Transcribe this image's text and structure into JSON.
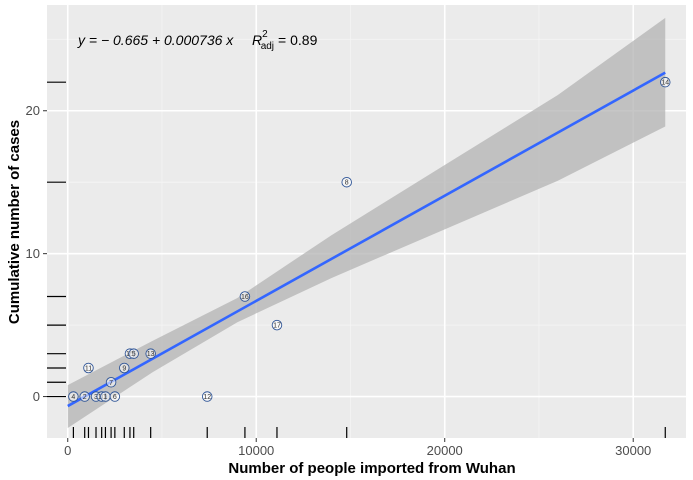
{
  "chart_data": {
    "type": "scatter",
    "title": "",
    "xlabel": "Number of people imported from Wuhan",
    "ylabel": "Cumulative number of cases",
    "xlim": [
      -1100,
      32800
    ],
    "ylim": [
      -2.9,
      27.4
    ],
    "x_ticks": [
      0,
      10000,
      20000,
      30000
    ],
    "x_tick_labels": [
      "0",
      "10000",
      "20000",
      "30000"
    ],
    "y_ticks": [
      0,
      10,
      20
    ],
    "y_tick_labels": [
      "0",
      "10",
      "20"
    ],
    "grid": true,
    "colors": {
      "panel_bg": "#ebebeb",
      "grid_major": "#ffffff",
      "fit_line": "#3366ff",
      "ribbon": "#b3b3b3",
      "point_stroke": "#2f5597",
      "rug": "#000000"
    },
    "fit": {
      "intercept": -0.665,
      "slope": 0.000736,
      "ci_band": [
        {
          "x": 0,
          "lo": -2.2,
          "hi": 0.8
        },
        {
          "x": 4500,
          "lo": 1.7,
          "hi": 3.9
        },
        {
          "x": 9000,
          "lo": 5.2,
          "hi": 6.9
        },
        {
          "x": 14000,
          "lo": 8.3,
          "hi": 11.3
        },
        {
          "x": 20000,
          "lo": 11.7,
          "hi": 16.2
        },
        {
          "x": 26000,
          "lo": 15.1,
          "hi": 21.1
        },
        {
          "x": 31700,
          "lo": 18.9,
          "hi": 26.5
        }
      ]
    },
    "equation": {
      "y_eq": "y = − 0.665 + 0.000736 x",
      "r2_symbol": "R",
      "r2_sup": "2",
      "r2_sub": "adj",
      "r2_value": "= 0.89"
    },
    "points": [
      {
        "label": "4",
        "x": 300,
        "y": 0
      },
      {
        "label": "2",
        "x": 900,
        "y": 0
      },
      {
        "label": "11",
        "x": 1100,
        "y": 2
      },
      {
        "label": "3",
        "x": 1500,
        "y": 0
      },
      {
        "label": "10",
        "x": 1800,
        "y": 0
      },
      {
        "label": "1",
        "x": 2000,
        "y": 0
      },
      {
        "label": "7",
        "x": 2300,
        "y": 1
      },
      {
        "label": "6",
        "x": 2500,
        "y": 0
      },
      {
        "label": "9",
        "x": 3000,
        "y": 2
      },
      {
        "label": "15",
        "x": 3300,
        "y": 3
      },
      {
        "label": "5",
        "x": 3500,
        "y": 3
      },
      {
        "label": "13",
        "x": 4400,
        "y": 3
      },
      {
        "label": "12",
        "x": 7400,
        "y": 0
      },
      {
        "label": "16",
        "x": 9400,
        "y": 7
      },
      {
        "label": "17",
        "x": 11100,
        "y": 5
      },
      {
        "label": "8",
        "x": 14800,
        "y": 15
      },
      {
        "label": "14",
        "x": 31700,
        "y": 22
      }
    ],
    "rug_x": [
      300,
      900,
      1100,
      1500,
      1800,
      2000,
      2300,
      2500,
      3000,
      3300,
      3500,
      4400,
      7400,
      9400,
      11100,
      14800,
      31700
    ],
    "rug_y": [
      0,
      1,
      2,
      3,
      5,
      7,
      15,
      22
    ]
  }
}
